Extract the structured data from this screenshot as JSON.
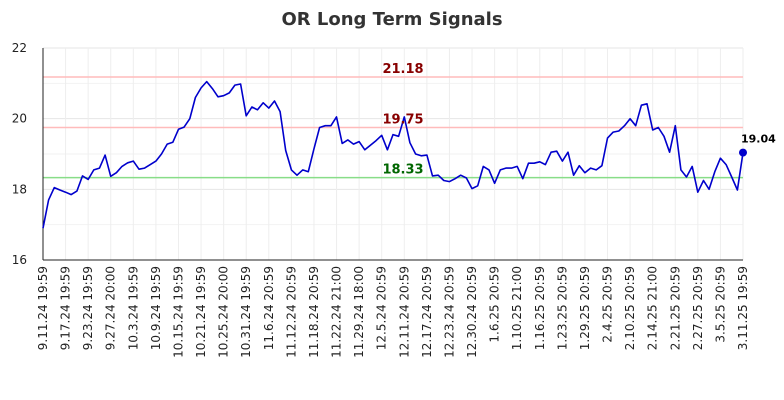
{
  "chart_data": {
    "type": "line",
    "title": "OR Long Term Signals",
    "xlabel": "",
    "ylabel": "",
    "ylim": [
      16,
      22
    ],
    "yticks": [
      16,
      18,
      20,
      22
    ],
    "grid": true,
    "line_color": "#0000cc",
    "x_tick_labels": [
      "9.11.24 19:59",
      "9.17.24 19:59",
      "9.23.24 19:59",
      "9.27.24 20:00",
      "10.3.24 19:59",
      "10.9.24 19:59",
      "10.15.24 19:59",
      "10.21.24 19:59",
      "10.25.24 20:00",
      "10.31.24 19:59",
      "11.6.24 20:59",
      "11.12.24 20:59",
      "11.18.24 20:59",
      "11.22.24 21:00",
      "11.29.24 18:00",
      "12.5.24 20:59",
      "12.11.24 20:59",
      "12.17.24 20:59",
      "12.23.24 20:59",
      "12.30.24 20:59",
      "1.6.25 20:59",
      "1.10.25 21:00",
      "1.16.25 20:59",
      "1.23.25 20:59",
      "1.29.25 20:59",
      "2.4.25 20:59",
      "2.10.25 20:59",
      "2.14.25 21:00",
      "2.21.25 20:59",
      "2.27.25 20:59",
      "3.5.25 20:59",
      "3.11.25 19:59"
    ],
    "reference_lines": [
      {
        "value": 21.18,
        "label": "21.18",
        "line_color": "#ffbbbb",
        "label_color": "#880000"
      },
      {
        "value": 19.75,
        "label": "19.75",
        "line_color": "#ffbbbb",
        "label_color": "#880000"
      },
      {
        "value": 18.33,
        "label": "18.33",
        "line_color": "#88dd88",
        "label_color": "#006600"
      }
    ],
    "last_value": {
      "value": 19.04,
      "label": "19.04",
      "color": "#0000cc"
    },
    "series": [
      {
        "values": [
          16.9,
          17.7,
          18.05,
          17.98,
          17.92,
          17.85,
          17.95,
          18.38,
          18.28,
          18.55,
          18.6,
          18.97,
          18.37,
          18.47,
          18.65,
          18.75,
          18.8,
          18.57,
          18.6,
          18.7,
          18.8,
          19.0,
          19.28,
          19.33,
          19.7,
          19.76,
          20.0,
          20.6,
          20.87,
          21.05,
          20.85,
          20.62,
          20.65,
          20.73,
          20.95,
          20.98,
          20.08,
          20.33,
          20.25,
          20.45,
          20.3,
          20.5,
          20.2,
          19.1,
          18.55,
          18.4,
          18.55,
          18.5,
          19.15,
          19.75,
          19.8,
          19.8,
          20.05,
          19.3,
          19.4,
          19.28,
          19.35,
          19.12,
          19.25,
          19.38,
          19.53,
          19.12,
          19.55,
          19.5,
          20.05,
          19.32,
          19.0,
          18.95,
          18.97,
          18.38,
          18.4,
          18.25,
          18.22,
          18.3,
          18.4,
          18.32,
          18.02,
          18.1,
          18.65,
          18.55,
          18.17,
          18.55,
          18.6,
          18.6,
          18.65,
          18.3,
          18.74,
          18.74,
          18.78,
          18.7,
          19.05,
          19.08,
          18.8,
          19.05,
          18.4,
          18.67,
          18.47,
          18.6,
          18.55,
          18.67,
          19.45,
          19.62,
          19.65,
          19.8,
          20.0,
          19.8,
          20.38,
          20.42,
          19.68,
          19.75,
          19.5,
          19.05,
          19.8,
          18.55,
          18.35,
          18.65,
          17.92,
          18.25,
          18.0,
          18.5,
          18.88,
          18.7,
          18.35,
          17.98,
          19.04
        ]
      }
    ]
  }
}
